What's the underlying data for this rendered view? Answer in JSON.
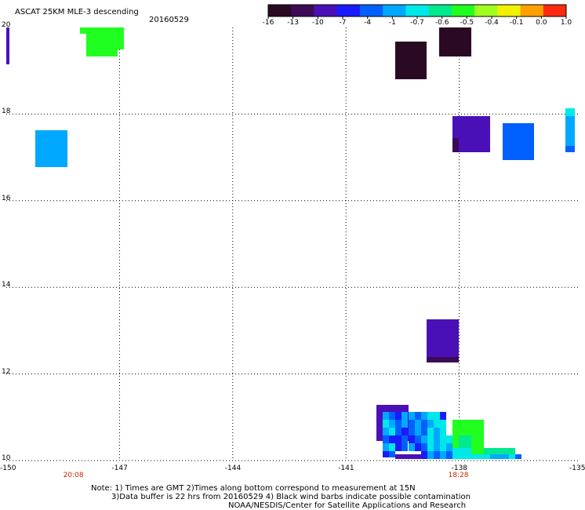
{
  "header": {
    "title": "ASCAT 25KM MLE-3 descending",
    "date": "20160529"
  },
  "colorbar": {
    "labels": [
      "-16",
      "-13",
      "-10",
      "-7",
      "-4",
      "-1",
      "-0.7",
      "-0.6",
      "-0.5",
      "-0.4",
      "-0.1",
      "0.0",
      "1.0"
    ],
    "colors": [
      "#2a0a22",
      "#3d0a55",
      "#4a10b8",
      "#1a1aff",
      "#0060ff",
      "#00a8ff",
      "#00e8e8",
      "#00e890",
      "#20ff20",
      "#a0ff20",
      "#f0f000",
      "#ffa000",
      "#ff2a10"
    ]
  },
  "map": {
    "lon_range": [
      -150,
      -135
    ],
    "lat_range": [
      10,
      20
    ],
    "x_ticks": [
      "-150",
      "-147",
      "-144",
      "-141",
      "-138",
      "-135"
    ],
    "y_ticks": [
      "20",
      "18",
      "16",
      "14",
      "12",
      "10"
    ],
    "time_labels": [
      {
        "text": "20:08",
        "lon": -148.2
      },
      {
        "text": "18:28",
        "lon": -138.0
      }
    ],
    "time_label_color": "#cc2200"
  },
  "footer": {
    "line1": "Note: 1) Times are GMT 2)Times along bottom correspond to measurement at 15N",
    "line2": "3)Data buffer is 22 hrs from 20160529 4) Black wind barbs indicate possible contamination",
    "line3": "NOAA/NESDIS/Center for Satellite Applications and Research"
  }
}
